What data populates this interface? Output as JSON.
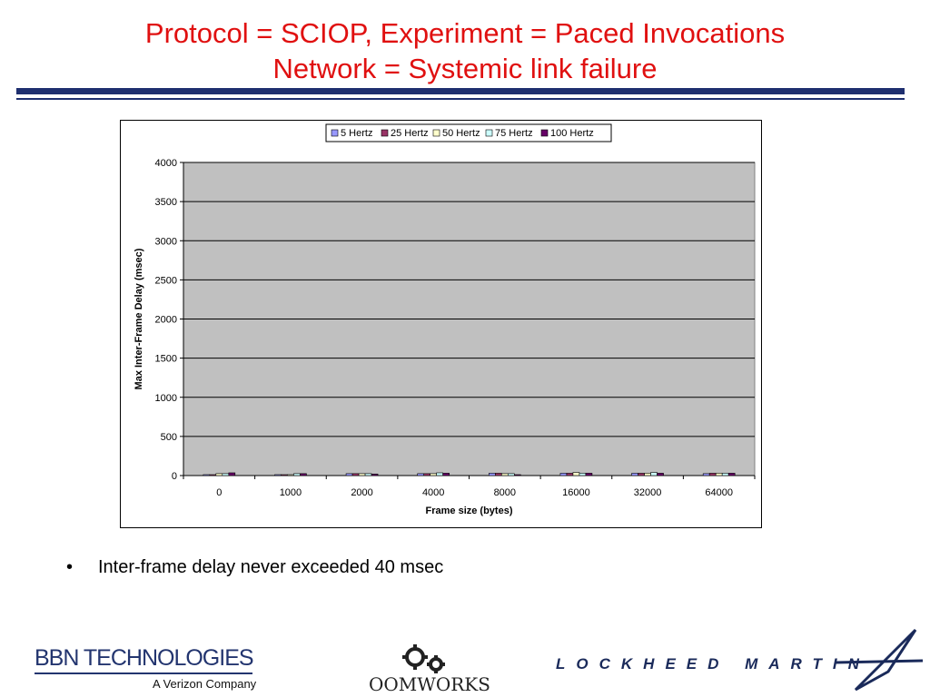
{
  "slide": {
    "title_line1": "Protocol = SCIOP, Experiment = Paced Invocations",
    "title_line2": "Network = Systemic link failure",
    "bullet": "Inter-frame delay never exceeded 40 msec"
  },
  "logos": {
    "bbn_name": "BBN TECHNOLOGIES",
    "bbn_sub": "A Verizon Company",
    "oom_name": "OOMWORKS",
    "lm_name": "LOCKHEED MARTIN"
  },
  "colors": {
    "title": "#e01010",
    "plot_bg": "#c0c0c0",
    "series": [
      "#9999ff",
      "#993366",
      "#ffffcc",
      "#ccffff",
      "#660066"
    ]
  },
  "chart_data": {
    "type": "bar",
    "title": "",
    "xlabel": "Frame size (bytes)",
    "ylabel": "Max Inter-Frame Delay (msec)",
    "categories": [
      "0",
      "1000",
      "2000",
      "4000",
      "8000",
      "16000",
      "32000",
      "64000"
    ],
    "ylim": [
      0,
      4000
    ],
    "yticks": [
      0,
      500,
      1000,
      1500,
      2000,
      2500,
      3000,
      3500,
      4000
    ],
    "grid": true,
    "legend_position": "top",
    "series": [
      {
        "name": "5 Hertz",
        "values": [
          10,
          10,
          25,
          25,
          30,
          30,
          30,
          25
        ]
      },
      {
        "name": "25 Hertz",
        "values": [
          10,
          10,
          25,
          25,
          30,
          30,
          30,
          30
        ]
      },
      {
        "name": "50 Hertz",
        "values": [
          25,
          10,
          25,
          25,
          25,
          40,
          30,
          30
        ]
      },
      {
        "name": "75 Hertz",
        "values": [
          25,
          25,
          25,
          35,
          25,
          30,
          40,
          30
        ]
      },
      {
        "name": "100 Hertz",
        "values": [
          35,
          25,
          20,
          30,
          10,
          30,
          30,
          30
        ]
      }
    ]
  }
}
